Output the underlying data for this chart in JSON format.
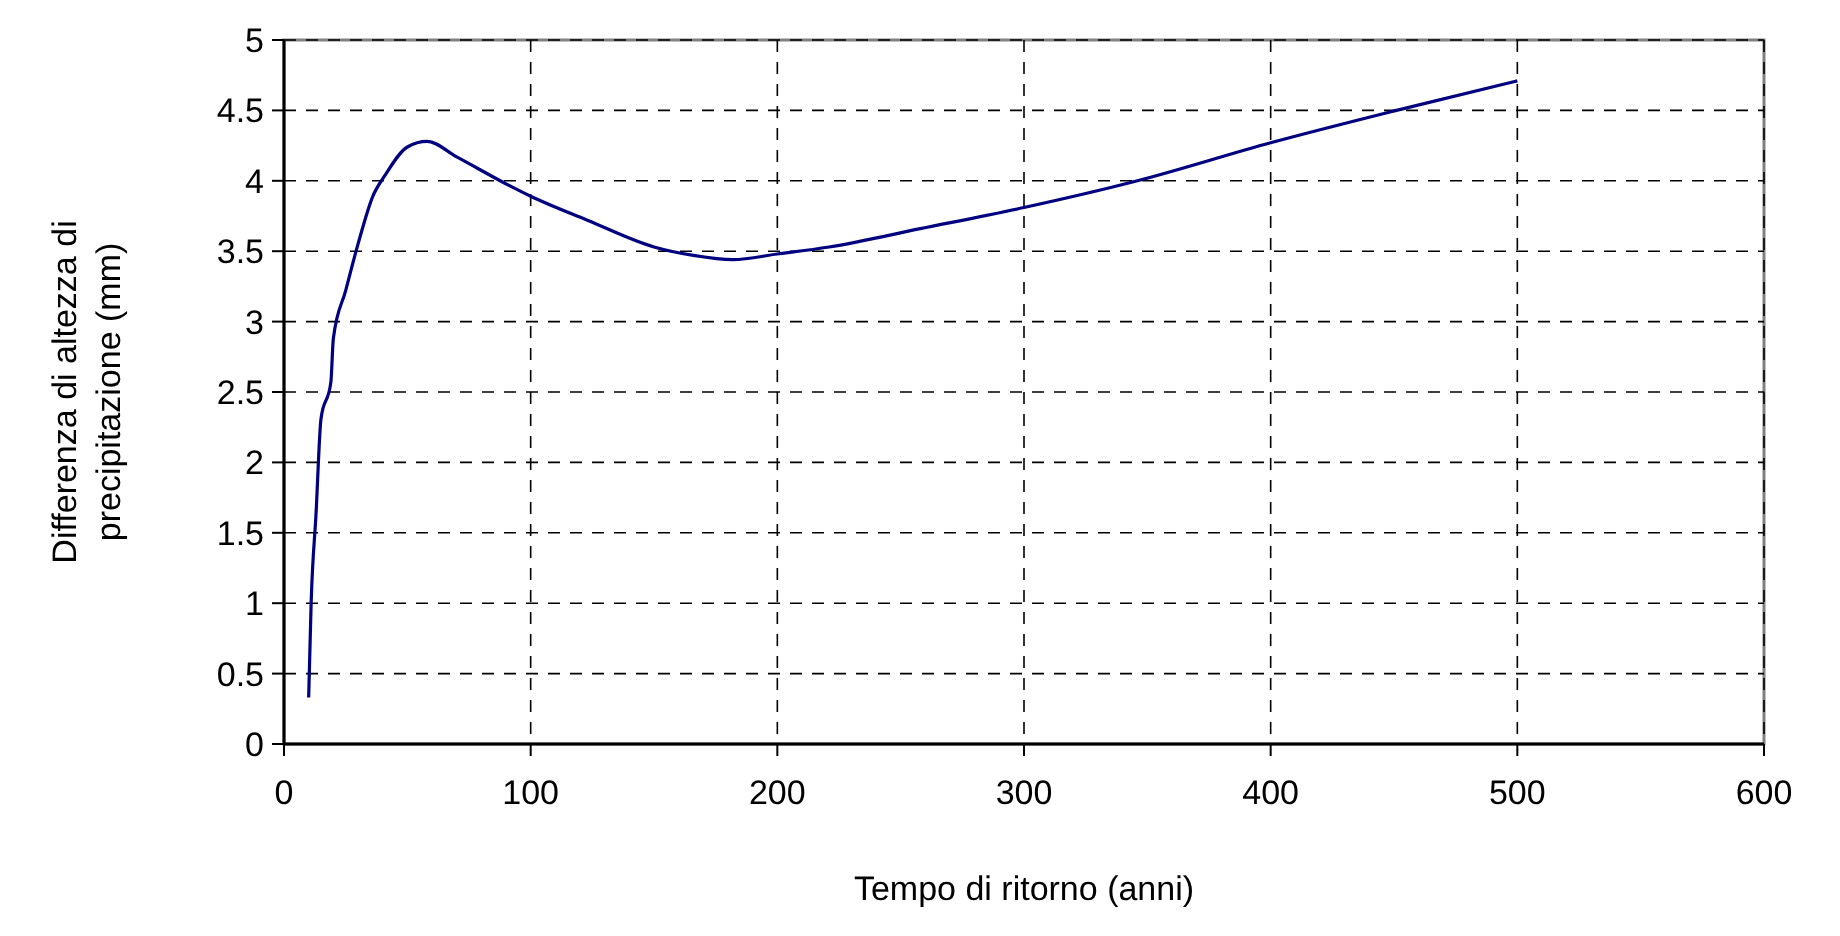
{
  "chart_data": {
    "type": "line",
    "xlabel": "Tempo di ritorno (anni)",
    "ylabel": "Differenza di altezza di precipitazione (mm)",
    "xlim": [
      0,
      600
    ],
    "xticks": [
      0,
      100,
      200,
      300,
      400,
      500,
      600
    ],
    "ylim": [
      0,
      5
    ],
    "yticks": [
      0,
      0.5,
      1,
      1.5,
      2,
      2.5,
      3,
      3.5,
      4,
      4.5,
      5
    ],
    "grid": true,
    "marker": "none",
    "line_style": "solid",
    "series": [
      {
        "color": "#000080",
        "x": [
          10,
          11,
          13,
          15,
          19,
          20,
          25,
          30,
          36,
          41,
          50,
          58,
          70,
          92,
          100,
          123,
          150,
          166,
          182,
          200,
          221,
          258,
          300,
          346,
          400,
          451,
          500
        ],
        "values": [
          0.33,
          1.0,
          1.64,
          2.31,
          2.57,
          2.88,
          3.22,
          3.55,
          3.89,
          4.04,
          4.24,
          4.28,
          4.17,
          3.96,
          3.89,
          3.72,
          3.53,
          3.47,
          3.44,
          3.48,
          3.53,
          3.66,
          3.81,
          4.0,
          4.27,
          4.5,
          4.71
        ]
      }
    ]
  }
}
